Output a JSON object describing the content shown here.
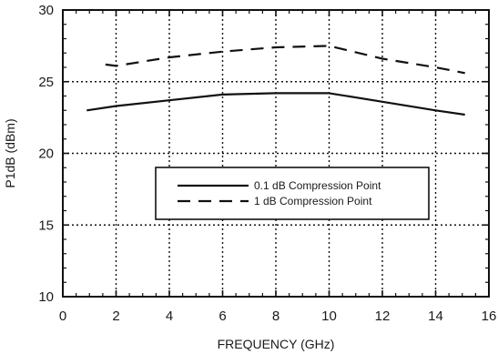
{
  "chart_data": {
    "type": "line",
    "xlabel": "FREQUENCY (GHz)",
    "ylabel": "P1dB (dBm)",
    "xlim": [
      0,
      16
    ],
    "ylim": [
      10,
      30
    ],
    "x_ticks": [
      "0",
      "2",
      "4",
      "6",
      "8",
      "10",
      "12",
      "14",
      "16"
    ],
    "y_ticks": [
      "10",
      "15",
      "20",
      "25",
      "30"
    ],
    "grid": true,
    "legend_position": "center",
    "series": [
      {
        "name": "0.1 dB Compression Point",
        "style": "solid",
        "color": "#111111",
        "x": [
          0.9,
          2.0,
          4.0,
          6.0,
          8.0,
          10.0,
          12.0,
          14.0,
          15.1
        ],
        "y": [
          23.0,
          23.3,
          23.7,
          24.1,
          24.2,
          24.2,
          23.6,
          23.0,
          22.7
        ]
      },
      {
        "name": "1 dB Compression Point",
        "style": "dashed",
        "color": "#111111",
        "x": [
          1.6,
          2.0,
          4.0,
          6.0,
          8.0,
          10.0,
          12.0,
          14.0,
          15.1
        ],
        "y": [
          26.2,
          26.1,
          26.7,
          27.1,
          27.4,
          27.5,
          26.6,
          26.0,
          25.6
        ]
      }
    ]
  }
}
